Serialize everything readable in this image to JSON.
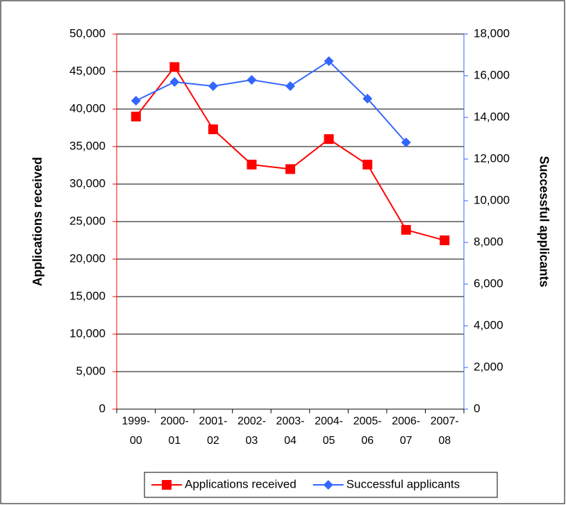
{
  "chart_data": {
    "type": "line",
    "ylabel": "Applications received",
    "y2label": "Successful applicants",
    "categories": [
      "1999-00",
      "2000-01",
      "2001-02",
      "2002-03",
      "2003-04",
      "2004-05",
      "2005-06",
      "2006-07",
      "2007-08"
    ],
    "series": [
      {
        "name": "Applications received",
        "color": "#ff0000",
        "marker": "square",
        "axis": "y",
        "values": [
          39000,
          45600,
          37300,
          32600,
          32000,
          36000,
          32600,
          23900,
          22500
        ]
      },
      {
        "name": "Successful applicants",
        "color": "#3366ff",
        "marker": "diamond",
        "axis": "y2",
        "values": [
          14800,
          15700,
          15500,
          15800,
          15500,
          16700,
          14900,
          12800,
          null
        ]
      }
    ],
    "ylim": [
      0,
      50000
    ],
    "yticks": [
      0,
      {
        "value": 5000,
        "label": "5,000"
      },
      {
        "value": 10000,
        "label": "10,000"
      },
      {
        "value": 15000,
        "label": "15,000"
      },
      {
        "value": 20000,
        "label": "20,000"
      },
      {
        "value": 25000,
        "label": "25,000"
      },
      {
        "value": 30000,
        "label": "30,000"
      },
      {
        "value": 35000,
        "label": "35,000"
      },
      {
        "value": 40000,
        "label": "40,000"
      },
      {
        "value": 45000,
        "label": "45,000"
      },
      {
        "value": 50000,
        "label": "50,000"
      }
    ],
    "y2lim": [
      0,
      18000
    ],
    "y2ticks": [
      0,
      {
        "value": 2000,
        "label": "2,000"
      },
      {
        "value": 4000,
        "label": "4,000"
      },
      {
        "value": 6000,
        "label": "6,000"
      },
      {
        "value": 8000,
        "label": "8,000"
      },
      {
        "value": 10000,
        "label": "10,000"
      },
      {
        "value": 12000,
        "label": "12,000"
      },
      {
        "value": 14000,
        "label": "14,000"
      },
      {
        "value": 16000,
        "label": "16,000"
      },
      {
        "value": 18000,
        "label": "18,000"
      }
    ],
    "grid": true,
    "legend": "bottom"
  }
}
